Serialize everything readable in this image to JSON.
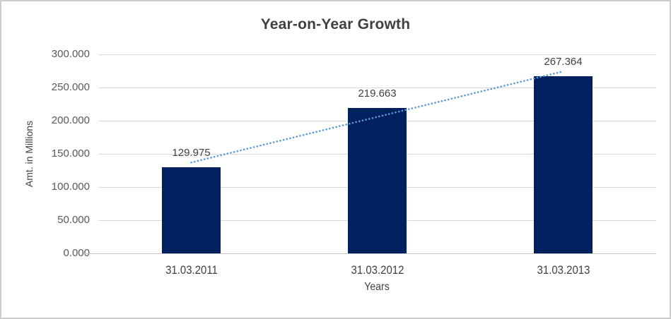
{
  "chart_data": {
    "type": "bar",
    "title": "Year-on-Year Growth",
    "categories": [
      "31.03.2011",
      "31.03.2012",
      "31.03.2013"
    ],
    "values": [
      129.975,
      219.663,
      267.364
    ],
    "data_labels": [
      "129.975",
      "219.663",
      "267.364"
    ],
    "xlabel": "Years",
    "ylabel": "Amt. in Millions",
    "ylim": [
      0,
      300
    ],
    "ytick_step": 50,
    "ytick_labels": [
      "0.000",
      "50.000",
      "100.000",
      "150.000",
      "200.000",
      "250.000",
      "300.000"
    ],
    "grid": "horizontal",
    "legend": "none",
    "trendline": {
      "type": "linear",
      "style": "dotted",
      "color": "#5b9bd5"
    },
    "colors": {
      "bar": "#002060",
      "gridline": "#d9d9d9",
      "axis_line": "#c3c3c3",
      "title_text": "#3f3f3f",
      "tick_text": "#595959",
      "label_text": "#404040",
      "window_border": "#cdcdcd",
      "background": "#ffffff"
    }
  }
}
